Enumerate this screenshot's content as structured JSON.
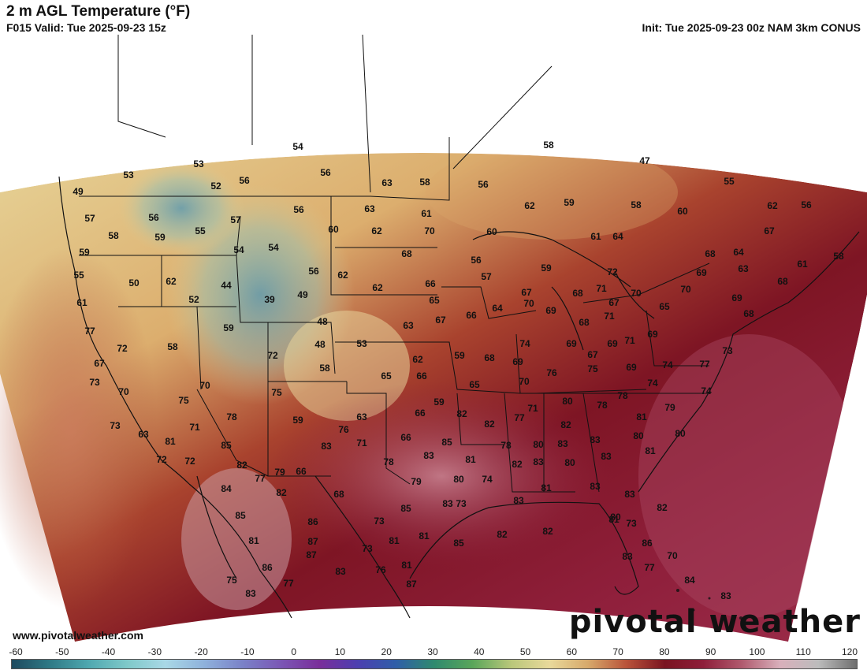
{
  "header": {
    "title": "2 m AGL Temperature (°F)",
    "valid": "F015 Valid: Tue 2025-09-23 15z",
    "init": "Init: Tue 2025-09-23 00z NAM 3km CONUS"
  },
  "footer": {
    "site": "www.pivotalweather.com",
    "brand": "pivotal weather"
  },
  "scale": {
    "ticks": [
      "-60",
      "-50",
      "-40",
      "-30",
      "-20",
      "-10",
      "0",
      "10",
      "20",
      "30",
      "40",
      "50",
      "60",
      "70",
      "80",
      "90",
      "100",
      "110",
      "120"
    ],
    "colors": [
      "#1e4a5e",
      "#2f7a86",
      "#4fa8b0",
      "#7fc9c9",
      "#a9d8e6",
      "#8fb2dc",
      "#7a82c8",
      "#7b57b5",
      "#7a2e9a",
      "#4c3fb0",
      "#2f5ea8",
      "#2f8a6e",
      "#5aa65a",
      "#b9c77a",
      "#e9d99b",
      "#d7a96b",
      "#b9533a",
      "#7a1420",
      "#8e1e3a",
      "#b05a6e",
      "#d9b0bb",
      "#bcbcbc",
      "#6e6e6e"
    ]
  },
  "map": {
    "temps": [
      {
        "v": "54"
      },
      {
        "v": "58"
      },
      {
        "v": "53"
      },
      {
        "v": "53"
      },
      {
        "v": "52"
      },
      {
        "v": "56"
      },
      {
        "v": "56"
      },
      {
        "v": "63"
      },
      {
        "v": "58"
      },
      {
        "v": "56"
      },
      {
        "v": "47"
      },
      {
        "v": "55"
      },
      {
        "v": "49"
      },
      {
        "v": "57"
      },
      {
        "v": "56"
      },
      {
        "v": "55"
      },
      {
        "v": "57"
      },
      {
        "v": "56"
      },
      {
        "v": "63"
      },
      {
        "v": "61"
      },
      {
        "v": "62"
      },
      {
        "v": "59"
      },
      {
        "v": "58"
      },
      {
        "v": "60"
      },
      {
        "v": "62"
      },
      {
        "v": "56"
      },
      {
        "v": "58"
      },
      {
        "v": "59"
      },
      {
        "v": "54"
      },
      {
        "v": "54"
      },
      {
        "v": "60"
      },
      {
        "v": "62"
      },
      {
        "v": "70"
      },
      {
        "v": "60"
      },
      {
        "v": "61"
      },
      {
        "v": "64"
      },
      {
        "v": "67"
      },
      {
        "v": "59"
      },
      {
        "v": "68"
      },
      {
        "v": "56"
      },
      {
        "v": "68"
      },
      {
        "v": "64"
      },
      {
        "v": "61"
      },
      {
        "v": "58"
      },
      {
        "v": "55"
      },
      {
        "v": "50"
      },
      {
        "v": "62"
      },
      {
        "v": "44"
      },
      {
        "v": "56"
      },
      {
        "v": "62"
      },
      {
        "v": "57"
      },
      {
        "v": "59"
      },
      {
        "v": "72"
      },
      {
        "v": "69"
      },
      {
        "v": "63"
      },
      {
        "v": "68"
      },
      {
        "v": "61"
      },
      {
        "v": "52"
      },
      {
        "v": "39"
      },
      {
        "v": "49"
      },
      {
        "v": "62"
      },
      {
        "v": "66"
      },
      {
        "v": "65"
      },
      {
        "v": "67"
      },
      {
        "v": "68"
      },
      {
        "v": "71"
      },
      {
        "v": "67"
      },
      {
        "v": "70"
      },
      {
        "v": "65"
      },
      {
        "v": "70"
      },
      {
        "v": "69"
      },
      {
        "v": "77"
      },
      {
        "v": "59"
      },
      {
        "v": "48"
      },
      {
        "v": "63"
      },
      {
        "v": "67"
      },
      {
        "v": "66"
      },
      {
        "v": "64"
      },
      {
        "v": "70"
      },
      {
        "v": "69"
      },
      {
        "v": "68"
      },
      {
        "v": "71"
      },
      {
        "v": "68"
      },
      {
        "v": "72"
      },
      {
        "v": "58"
      },
      {
        "v": "48"
      },
      {
        "v": "53"
      },
      {
        "v": "59"
      },
      {
        "v": "68"
      },
      {
        "v": "74"
      },
      {
        "v": "69"
      },
      {
        "v": "67"
      },
      {
        "v": "69"
      },
      {
        "v": "71"
      },
      {
        "v": "69"
      },
      {
        "v": "73"
      },
      {
        "v": "67"
      },
      {
        "v": "72"
      },
      {
        "v": "58"
      },
      {
        "v": "62"
      },
      {
        "v": "66"
      },
      {
        "v": "69"
      },
      {
        "v": "76"
      },
      {
        "v": "75"
      },
      {
        "v": "69"
      },
      {
        "v": "74"
      },
      {
        "v": "77"
      },
      {
        "v": "73"
      },
      {
        "v": "70"
      },
      {
        "v": "65"
      },
      {
        "v": "65"
      },
      {
        "v": "70"
      },
      {
        "v": "74"
      },
      {
        "v": "74"
      },
      {
        "v": "70"
      },
      {
        "v": "75"
      },
      {
        "v": "75"
      },
      {
        "v": "59"
      },
      {
        "v": "78"
      },
      {
        "v": "78"
      },
      {
        "v": "71"
      },
      {
        "v": "79"
      },
      {
        "v": "80"
      },
      {
        "v": "78"
      },
      {
        "v": "59"
      },
      {
        "v": "63"
      },
      {
        "v": "66"
      },
      {
        "v": "82"
      },
      {
        "v": "77"
      },
      {
        "v": "82"
      },
      {
        "v": "82"
      },
      {
        "v": "81"
      },
      {
        "v": "80"
      },
      {
        "v": "73"
      },
      {
        "v": "63"
      },
      {
        "v": "71"
      },
      {
        "v": "76"
      },
      {
        "v": "66"
      },
      {
        "v": "85"
      },
      {
        "v": "78"
      },
      {
        "v": "83"
      },
      {
        "v": "80"
      },
      {
        "v": "81"
      },
      {
        "v": "85"
      },
      {
        "v": "83"
      },
      {
        "v": "71"
      },
      {
        "v": "78"
      },
      {
        "v": "83"
      },
      {
        "v": "82"
      },
      {
        "v": "83"
      },
      {
        "v": "72"
      },
      {
        "v": "72"
      },
      {
        "v": "82"
      },
      {
        "v": "79"
      },
      {
        "v": "83"
      },
      {
        "v": "81"
      },
      {
        "v": "80"
      },
      {
        "v": "83"
      },
      {
        "v": "81"
      },
      {
        "v": "77"
      },
      {
        "v": "66"
      },
      {
        "v": "74"
      },
      {
        "v": "79"
      },
      {
        "v": "80"
      },
      {
        "v": "81"
      },
      {
        "v": "83"
      },
      {
        "v": "83"
      },
      {
        "v": "84"
      },
      {
        "v": "82"
      },
      {
        "v": "68"
      },
      {
        "v": "73"
      },
      {
        "v": "85"
      },
      {
        "v": "83"
      },
      {
        "v": "82"
      },
      {
        "v": "80"
      },
      {
        "v": "83"
      },
      {
        "v": "85"
      },
      {
        "v": "81"
      },
      {
        "v": "86"
      },
      {
        "v": "73"
      },
      {
        "v": "81"
      },
      {
        "v": "87"
      },
      {
        "v": "73"
      },
      {
        "v": "81"
      },
      {
        "v": "81"
      },
      {
        "v": "85"
      },
      {
        "v": "82"
      },
      {
        "v": "82"
      },
      {
        "v": "80"
      },
      {
        "v": "86"
      },
      {
        "v": "86"
      },
      {
        "v": "87"
      },
      {
        "v": "73"
      },
      {
        "v": "81"
      },
      {
        "v": "83"
      },
      {
        "v": "70"
      },
      {
        "v": "83"
      },
      {
        "v": "76"
      },
      {
        "v": "75"
      },
      {
        "v": "77"
      },
      {
        "v": "77"
      },
      {
        "v": "87"
      },
      {
        "v": "84"
      },
      {
        "v": "83"
      },
      {
        "v": "83"
      },
      {
        "v": "84"
      }
    ]
  }
}
